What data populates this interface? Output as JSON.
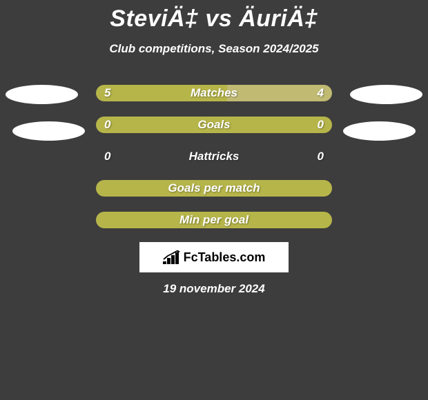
{
  "title": "SteviÄ‡ vs ÄuriÄ‡",
  "subtitle": "Club competitions, Season 2024/2025",
  "date": "19 november 2024",
  "logo": "FcTables.com",
  "colors": {
    "background": "#3d3d3d",
    "text": "#ffffff",
    "avatar": "#ffffff",
    "logo_bg": "#ffffff"
  },
  "bars": [
    {
      "label": "Matches",
      "left_value": "5",
      "right_value": "4",
      "left_color": "#b6b54a",
      "right_color": "#c0ba72",
      "left_width_pct": 55.6,
      "right_width_pct": 44.4,
      "has_values": true
    },
    {
      "label": "Goals",
      "left_value": "0",
      "right_value": "0",
      "left_color": "#b6b54a",
      "right_color": "#b6b54a",
      "left_width_pct": 50,
      "right_width_pct": 50,
      "has_values": true
    },
    {
      "label": "Hattricks",
      "left_value": "0",
      "right_value": "0",
      "left_color": "transparent",
      "right_color": "transparent",
      "left_width_pct": 50,
      "right_width_pct": 50,
      "has_values": true,
      "transparent": true
    },
    {
      "label": "Goals per match",
      "left_value": "",
      "right_value": "",
      "left_color": "#b6b54a",
      "right_color": "#b6b54a",
      "left_width_pct": 50,
      "right_width_pct": 50,
      "has_values": false
    },
    {
      "label": "Min per goal",
      "left_value": "",
      "right_value": "",
      "left_color": "#b6b54a",
      "right_color": "#b6b54a",
      "left_width_pct": 50,
      "right_width_pct": 50,
      "has_values": false
    }
  ]
}
